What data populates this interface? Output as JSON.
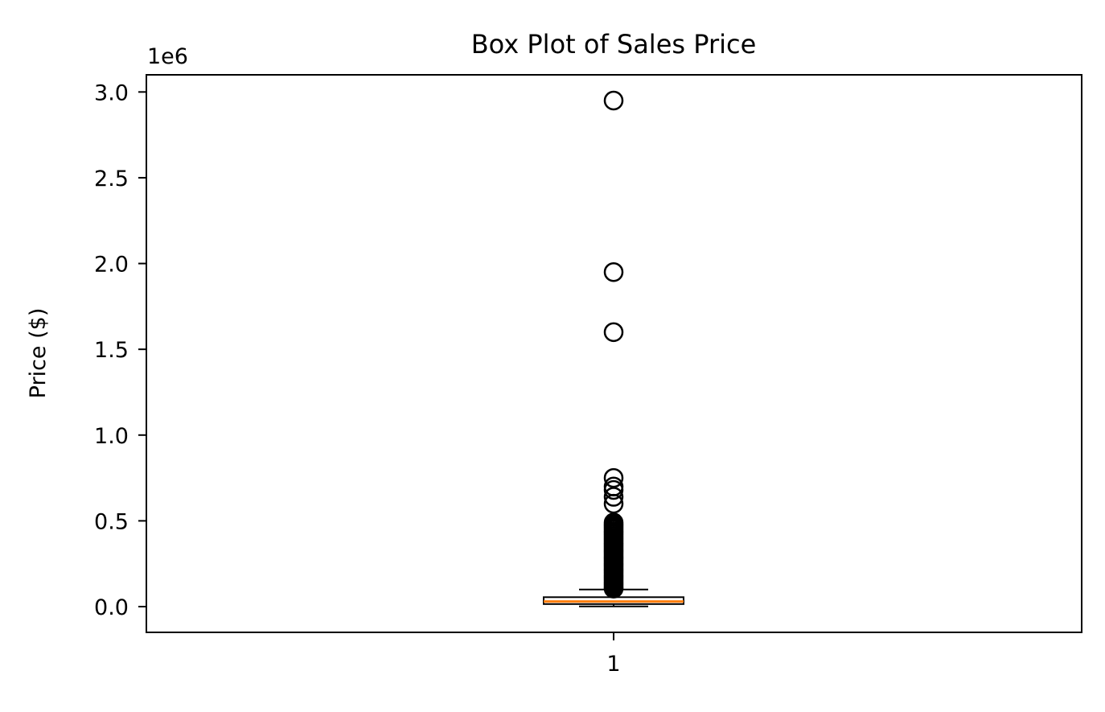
{
  "chart_data": {
    "type": "box",
    "title": "Box Plot of Sales Price",
    "xlabel": "",
    "ylabel": "Price ($)",
    "y_offset_label": "1e6",
    "y_scale_factor": 1000000,
    "ylim": [
      -150000,
      3100000
    ],
    "y_ticks": [
      0,
      500000,
      1000000,
      1500000,
      2000000,
      2500000,
      3000000
    ],
    "y_tick_labels": [
      "0.0",
      "0.5",
      "1.0",
      "1.5",
      "2.0",
      "2.5",
      "3.0"
    ],
    "categories": [
      "1"
    ],
    "grid": false,
    "box": {
      "whisker_low": 1000,
      "q1": 15000,
      "median": 30000,
      "q3": 55000,
      "whisker_high": 100000,
      "outliers": [
        105000,
        110000,
        120000,
        130000,
        140000,
        150000,
        160000,
        170000,
        180000,
        190000,
        200000,
        210000,
        220000,
        230000,
        240000,
        250000,
        260000,
        270000,
        280000,
        290000,
        300000,
        310000,
        320000,
        330000,
        340000,
        350000,
        360000,
        370000,
        380000,
        390000,
        400000,
        410000,
        420000,
        430000,
        440000,
        450000,
        460000,
        470000,
        480000,
        490000,
        600000,
        640000,
        680000,
        700000,
        750000,
        1600000,
        1950000,
        2950000
      ]
    },
    "colors": {
      "median_line": "#ff7f0e",
      "box_edge": "#000000",
      "outlier_edge": "#000000"
    }
  }
}
